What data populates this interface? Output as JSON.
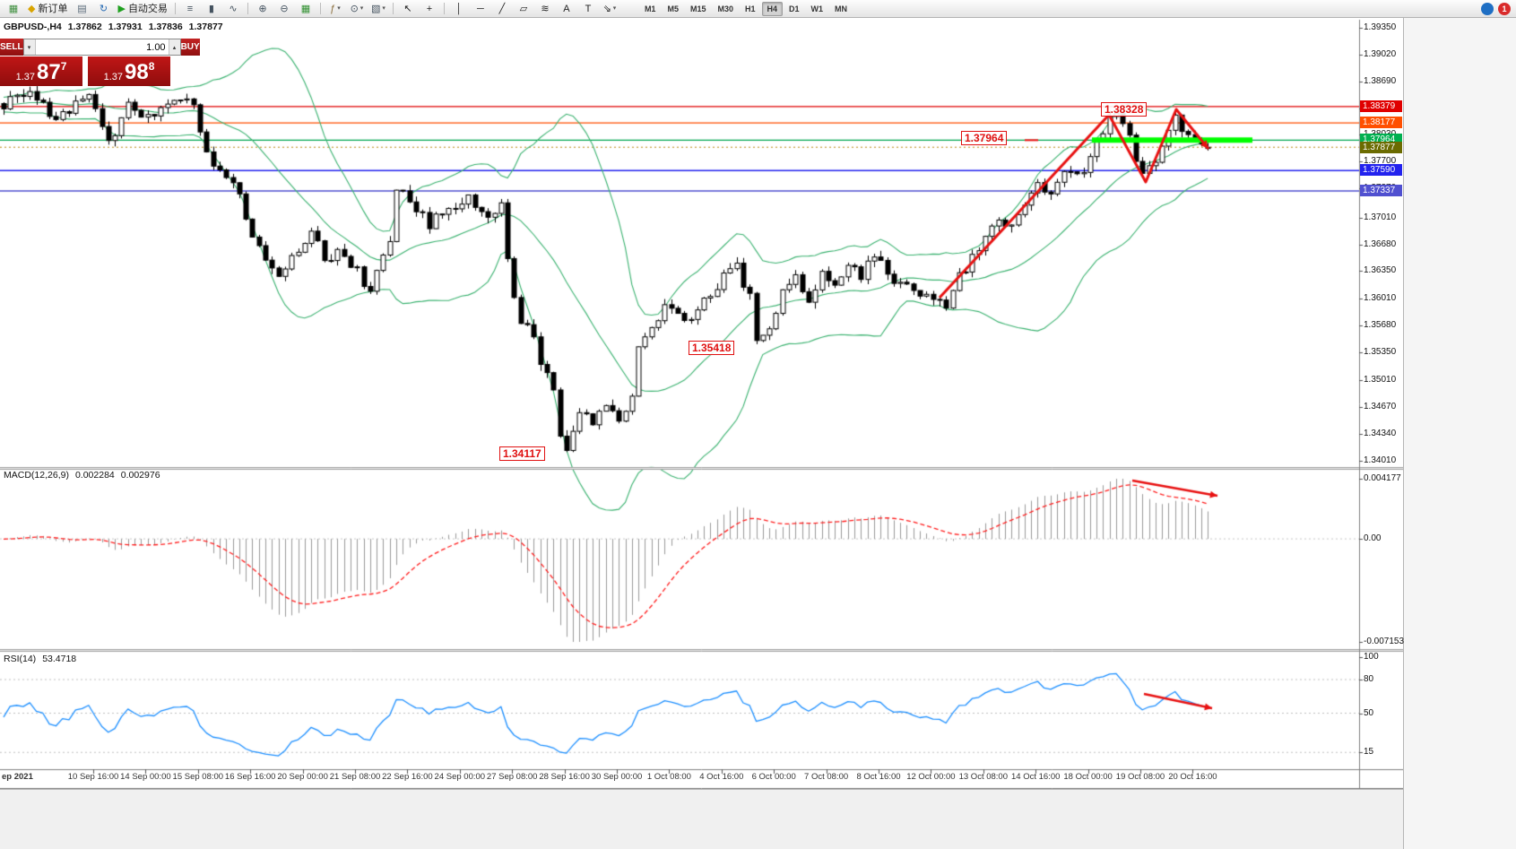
{
  "toolbar": {
    "caret_glyph": "▾",
    "buttons": [
      {
        "name": "new-chart",
        "glyph": "▦",
        "color": "#3f8f3f"
      },
      {
        "name": "new-order",
        "glyph": "◆",
        "color": "#d9a400",
        "label": "新订单"
      },
      {
        "name": "chart-profiles",
        "glyph": "▤",
        "color": "#5a6b7a"
      },
      {
        "name": "refresh",
        "glyph": "↻",
        "color": "#2a6db5"
      },
      {
        "name": "autotrading",
        "glyph": "▶",
        "color": "#1ea01e",
        "label": "自动交易"
      },
      {
        "sep": true
      },
      {
        "name": "bar-chart",
        "glyph": "≡",
        "color": "#44525f"
      },
      {
        "name": "candlestick-chart",
        "glyph": "▮",
        "color": "#44525f"
      },
      {
        "name": "line-chart",
        "glyph": "∿",
        "color": "#44525f"
      },
      {
        "sep": true
      },
      {
        "name": "zoom-in",
        "glyph": "⊕",
        "color": "#44525f"
      },
      {
        "name": "zoom-out",
        "glyph": "⊖",
        "color": "#44525f"
      },
      {
        "name": "tile-windows",
        "glyph": "▦",
        "color": "#2f8f2f"
      },
      {
        "sep": true
      },
      {
        "name": "indicators",
        "glyph": "ƒ",
        "color": "#8a6d3b",
        "caret": true
      },
      {
        "name": "periods",
        "glyph": "⊙",
        "color": "#44525f",
        "caret": true
      },
      {
        "name": "templates",
        "glyph": "▧",
        "color": "#44525f",
        "caret": true
      },
      {
        "sep": true
      },
      {
        "name": "cursor",
        "glyph": "↖",
        "color": "#222222"
      },
      {
        "name": "crosshair",
        "glyph": "+",
        "color": "#222222"
      },
      {
        "sep": true
      },
      {
        "name": "vertical-line",
        "glyph": "│",
        "color": "#222222"
      },
      {
        "name": "horizontal-line",
        "glyph": "─",
        "color": "#222222"
      },
      {
        "name": "trendline",
        "glyph": "╱",
        "color": "#222222"
      },
      {
        "name": "equidistant-channel",
        "glyph": "▱",
        "color": "#222222"
      },
      {
        "name": "fibonacci",
        "glyph": "≋",
        "color": "#222222"
      },
      {
        "name": "text",
        "glyph": "A",
        "color": "#222222"
      },
      {
        "name": "text-label",
        "glyph": "T",
        "color": "#222222"
      },
      {
        "name": "arrows",
        "glyph": "⇘",
        "color": "#222222",
        "caret": true
      }
    ],
    "timeframes": [
      {
        "label": "M1"
      },
      {
        "label": "M5"
      },
      {
        "label": "M15"
      },
      {
        "label": "M30"
      },
      {
        "label": "H1"
      },
      {
        "label": "H4",
        "active": true
      },
      {
        "label": "D1"
      },
      {
        "label": "W1"
      },
      {
        "label": "MN"
      }
    ],
    "right_icons": [
      {
        "name": "search",
        "bg": "#1f6fc4",
        "glyph": ""
      },
      {
        "name": "notifications",
        "bg": "#d92b2b",
        "glyph": "1"
      }
    ]
  },
  "chart_header": {
    "symbol_period": "GBPUSD-,H4",
    "open": "1.37862",
    "high": "1.37931",
    "low": "1.37836",
    "close": "1.37877"
  },
  "trade_panel": {
    "sell_label": "SELL",
    "buy_label": "BUY",
    "volume": "1.00",
    "spinner_down": "▾",
    "spinner_up": "▴",
    "sell_tile": {
      "base": "1.37",
      "big": "87",
      "sup": "7"
    },
    "buy_tile": {
      "base": "1.37",
      "big": "98",
      "sup": "8"
    }
  },
  "annotations": {
    "swing_high_label": "1.38328",
    "level_label": "1.37964",
    "mid_low_label": "1.35418",
    "swing_low_label": "1.34117",
    "trend_color": "#e81212",
    "highlight_color": "#00ff00"
  },
  "chart_data": [
    {
      "type": "candlestick",
      "title": "GBPUSD-,H4",
      "symbol": "GBPUSD-",
      "timeframe": "H4",
      "bar_count": 185,
      "y_axis": {
        "min": 1.3401,
        "max": 1.3935,
        "ticks": [
          "1.39350",
          "1.39020",
          "1.38690",
          "1.38360",
          "1.38030",
          "1.37700",
          "1.37370",
          "1.37010",
          "1.36680",
          "1.36350",
          "1.36010",
          "1.35680",
          "1.35350",
          "1.35010",
          "1.34670",
          "1.34340",
          "1.34010"
        ]
      },
      "x_axis": {
        "labels": [
          "ep 2021",
          "10 Sep 16:00",
          "14 Sep 00:00",
          "15 Sep 08:00",
          "16 Sep 16:00",
          "20 Sep 00:00",
          "21 Sep 08:00",
          "22 Sep 16:00",
          "24 Sep 00:00",
          "27 Sep 08:00",
          "28 Sep 16:00",
          "30 Sep 00:00",
          "1 Oct 08:00",
          "4 Oct 16:00",
          "6 Oct 00:00",
          "7 Oct 08:00",
          "8 Oct 16:00",
          "12 Oct 00:00",
          "13 Oct 08:00",
          "14 Oct 16:00",
          "18 Oct 00:00",
          "19 Oct 08:00",
          "20 Oct 16:00"
        ]
      },
      "close_anchors": [
        [
          0,
          1.384
        ],
        [
          4,
          1.3858
        ],
        [
          8,
          1.3822
        ],
        [
          13,
          1.385
        ],
        [
          16,
          1.3792
        ],
        [
          19,
          1.3842
        ],
        [
          22,
          1.3826
        ],
        [
          26,
          1.3852
        ],
        [
          29,
          1.3846
        ],
        [
          31,
          1.378
        ],
        [
          34,
          1.3748
        ],
        [
          36,
          1.3736
        ],
        [
          38,
          1.3672
        ],
        [
          40,
          1.3652
        ],
        [
          42,
          1.3632
        ],
        [
          45,
          1.3658
        ],
        [
          47,
          1.3686
        ],
        [
          49,
          1.3652
        ],
        [
          52,
          1.3658
        ],
        [
          55,
          1.3622
        ],
        [
          56,
          1.3608
        ],
        [
          59,
          1.3672
        ],
        [
          60,
          1.3738
        ],
        [
          62,
          1.3722
        ],
        [
          65,
          1.3692
        ],
        [
          68,
          1.3714
        ],
        [
          71,
          1.3722
        ],
        [
          74,
          1.3702
        ],
        [
          76,
          1.3716
        ],
        [
          77,
          1.3644
        ],
        [
          78,
          1.36
        ],
        [
          79,
          1.3574
        ],
        [
          81,
          1.356
        ],
        [
          82,
          1.3526
        ],
        [
          84,
          1.3484
        ],
        [
          85,
          1.3438
        ],
        [
          86,
          1.3416
        ],
        [
          88,
          1.3466
        ],
        [
          90,
          1.3448
        ],
        [
          92,
          1.3464
        ],
        [
          94,
          1.3452
        ],
        [
          96,
          1.3478
        ],
        [
          97,
          1.3544
        ],
        [
          99,
          1.3562
        ],
        [
          101,
          1.3598
        ],
        [
          103,
          1.3576
        ],
        [
          105,
          1.3582
        ],
        [
          108,
          1.3606
        ],
        [
          110,
          1.363
        ],
        [
          112,
          1.364
        ],
        [
          114,
          1.3604
        ],
        [
          115,
          1.3548
        ],
        [
          117,
          1.3566
        ],
        [
          119,
          1.361
        ],
        [
          121,
          1.3626
        ],
        [
          123,
          1.3602
        ],
        [
          125,
          1.3632
        ],
        [
          127,
          1.3616
        ],
        [
          129,
          1.3642
        ],
        [
          131,
          1.363
        ],
        [
          133,
          1.3656
        ],
        [
          136,
          1.3626
        ],
        [
          138,
          1.3614
        ],
        [
          140,
          1.36
        ],
        [
          142,
          1.3606
        ],
        [
          144,
          1.3592
        ],
        [
          146,
          1.3626
        ],
        [
          148,
          1.3652
        ],
        [
          150,
          1.368
        ],
        [
          152,
          1.37
        ],
        [
          154,
          1.3692
        ],
        [
          156,
          1.3722
        ],
        [
          158,
          1.3744
        ],
        [
          160,
          1.373
        ],
        [
          162,
          1.3756
        ],
        [
          164,
          1.375
        ],
        [
          166,
          1.3776
        ],
        [
          168,
          1.381
        ],
        [
          170,
          1.3828
        ],
        [
          172,
          1.3796
        ],
        [
          174,
          1.3752
        ],
        [
          176,
          1.3772
        ],
        [
          178,
          1.3812
        ],
        [
          179,
          1.3822
        ],
        [
          181,
          1.38
        ],
        [
          183,
          1.3792
        ],
        [
          184,
          1.3788
        ]
      ],
      "key_points": {
        "swing_high": 1.38328,
        "swing_low": 1.34117,
        "local_low": 1.35418,
        "last_bar": {
          "open": 1.37862,
          "high": 1.37931,
          "low": 1.37836,
          "close": 1.37877
        }
      },
      "overlays": {
        "bollinger": {
          "period": 20,
          "deviation": 2,
          "color": "#3CB371"
        },
        "horizontal_lines": [
          {
            "label": "1.38379",
            "price": 1.38379,
            "color": "#e00000"
          },
          {
            "label": "1.38177",
            "price": 1.38177,
            "color": "#ff4f00"
          },
          {
            "label": "1.37964",
            "price": 1.37964,
            "color": "#00a651",
            "badge_color": "#00b050"
          },
          {
            "label": "1.37590",
            "price": 1.3759,
            "color": "#2222ee"
          },
          {
            "label": "1.37337",
            "price": 1.37337,
            "color": "#5050d0"
          }
        ],
        "bid_line": {
          "label": "1.37877",
          "price": 1.37877,
          "line_color": "#b8860b",
          "badge_color": "#6b6b00"
        }
      }
    },
    {
      "type": "macd-histogram",
      "label": "MACD(12,26,9)",
      "value_main": "0.002284",
      "value_signal": "0.002976",
      "y_ticks": [
        "0.004177",
        "0.00",
        "-0.007153"
      ],
      "range": {
        "min": -0.007153,
        "max": 0.004177
      },
      "colors": {
        "histogram": "#9a9a9a",
        "signal": "#ff2020"
      }
    },
    {
      "type": "line",
      "label": "RSI(14)",
      "value": "53.4718",
      "y_ticks": [
        "100",
        "80",
        "50",
        "15"
      ],
      "levels": [
        80,
        50,
        15
      ],
      "range": {
        "min": 0,
        "max": 100
      },
      "color": "#1e90ff"
    }
  ]
}
